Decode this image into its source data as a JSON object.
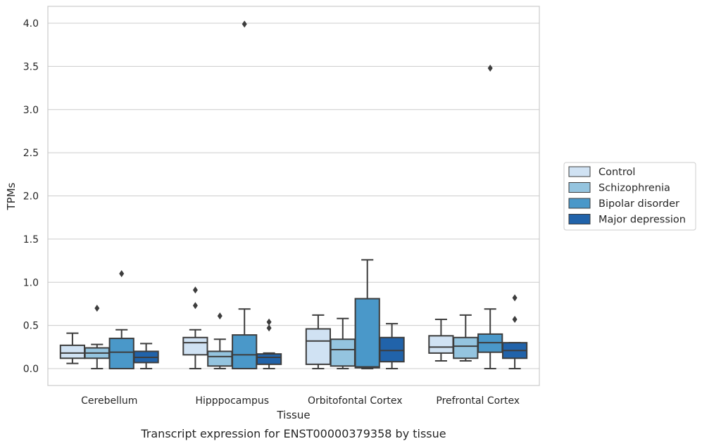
{
  "chart_data": {
    "type": "box",
    "xlabel": "Tissue",
    "ylabel": "TPMs",
    "caption": "Transcript expression for ENST00000379358 by tissue",
    "ylim": [
      -0.19,
      4.19
    ],
    "yticks": [
      "0.0",
      "0.5",
      "1.0",
      "1.5",
      "2.0",
      "2.5",
      "3.0",
      "3.5",
      "4.0"
    ],
    "ytick_values": [
      0,
      0.5,
      1.0,
      1.5,
      2.0,
      2.5,
      3.0,
      3.5,
      4.0
    ],
    "grid": "horizontal",
    "legend_placement": "right",
    "categories": [
      "Cerebellum",
      "Hipppocampus",
      "Orbitofontal Cortex",
      "Prefrontal Cortex"
    ],
    "series": [
      {
        "name": "Control",
        "color": "#d0e2f3",
        "boxes": [
          {
            "min": 0.06,
            "q1": 0.12,
            "median": 0.18,
            "q3": 0.27,
            "max": 0.41,
            "outliers": []
          },
          {
            "min": 0.0,
            "q1": 0.16,
            "median": 0.3,
            "q3": 0.36,
            "max": 0.45,
            "outliers": [
              0.73,
              0.91
            ]
          },
          {
            "min": 0.0,
            "q1": 0.05,
            "median": 0.32,
            "q3": 0.46,
            "max": 0.62,
            "outliers": []
          },
          {
            "min": 0.09,
            "q1": 0.18,
            "median": 0.25,
            "q3": 0.38,
            "max": 0.57,
            "outliers": []
          }
        ]
      },
      {
        "name": "Schizophrenia",
        "color": "#94c4df",
        "boxes": [
          {
            "min": 0.0,
            "q1": 0.12,
            "median": 0.18,
            "q3": 0.24,
            "max": 0.28,
            "outliers": [
              0.7
            ]
          },
          {
            "min": 0.0,
            "q1": 0.03,
            "median": 0.14,
            "q3": 0.2,
            "max": 0.34,
            "outliers": [
              0.61
            ]
          },
          {
            "min": 0.0,
            "q1": 0.03,
            "median": 0.22,
            "q3": 0.34,
            "max": 0.58,
            "outliers": []
          },
          {
            "min": 0.09,
            "q1": 0.12,
            "median": 0.26,
            "q3": 0.36,
            "max": 0.62,
            "outliers": []
          }
        ]
      },
      {
        "name": "Bipolar disorder",
        "color": "#4a98c9",
        "boxes": [
          {
            "min": 0.0,
            "q1": 0.0,
            "median": 0.19,
            "q3": 0.35,
            "max": 0.45,
            "outliers": [
              1.1
            ]
          },
          {
            "min": 0.0,
            "q1": 0.0,
            "median": 0.16,
            "q3": 0.39,
            "max": 0.69,
            "outliers": [
              3.99
            ]
          },
          {
            "min": 0.0,
            "q1": 0.01,
            "median": 0.02,
            "q3": 0.81,
            "max": 1.26,
            "outliers": []
          },
          {
            "min": 0.0,
            "q1": 0.19,
            "median": 0.3,
            "q3": 0.4,
            "max": 0.69,
            "outliers": [
              3.48
            ]
          }
        ]
      },
      {
        "name": "Major depression",
        "color": "#2163aa",
        "boxes": [
          {
            "min": 0.0,
            "q1": 0.07,
            "median": 0.13,
            "q3": 0.2,
            "max": 0.29,
            "outliers": []
          },
          {
            "min": 0.0,
            "q1": 0.05,
            "median": 0.13,
            "q3": 0.17,
            "max": 0.18,
            "outliers": [
              0.47,
              0.54
            ]
          },
          {
            "min": 0.0,
            "q1": 0.08,
            "median": 0.21,
            "q3": 0.36,
            "max": 0.52,
            "outliers": []
          },
          {
            "min": 0.0,
            "q1": 0.12,
            "median": 0.21,
            "q3": 0.3,
            "max": 0.3,
            "outliers": [
              0.57,
              0.82
            ]
          }
        ]
      }
    ]
  }
}
